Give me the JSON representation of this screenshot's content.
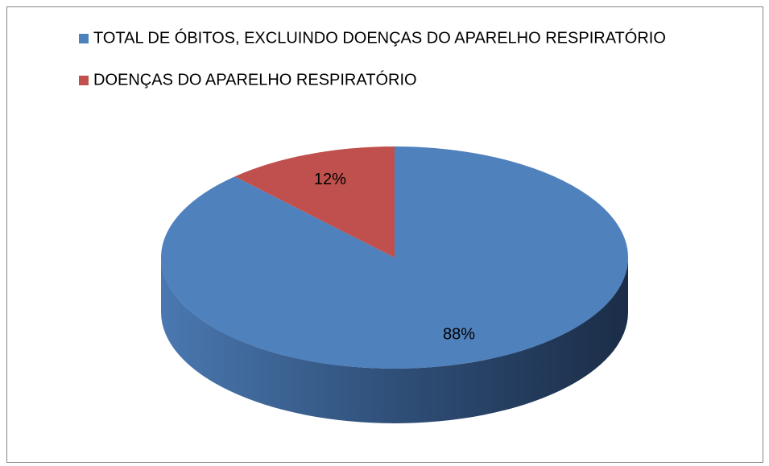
{
  "chart_data": {
    "type": "pie",
    "categories": [
      "TOTAL DE ÓBITOS, EXCLUINDO DOENÇAS DO APARELHO RESPIRATÓRIO",
      "DOENÇAS DO APARELHO RESPIRATÓRIO"
    ],
    "values": [
      88,
      12
    ],
    "value_labels": [
      "88%",
      "12%"
    ],
    "colors": [
      "#4f81bd",
      "#c0504d"
    ],
    "legend": "top-left"
  }
}
